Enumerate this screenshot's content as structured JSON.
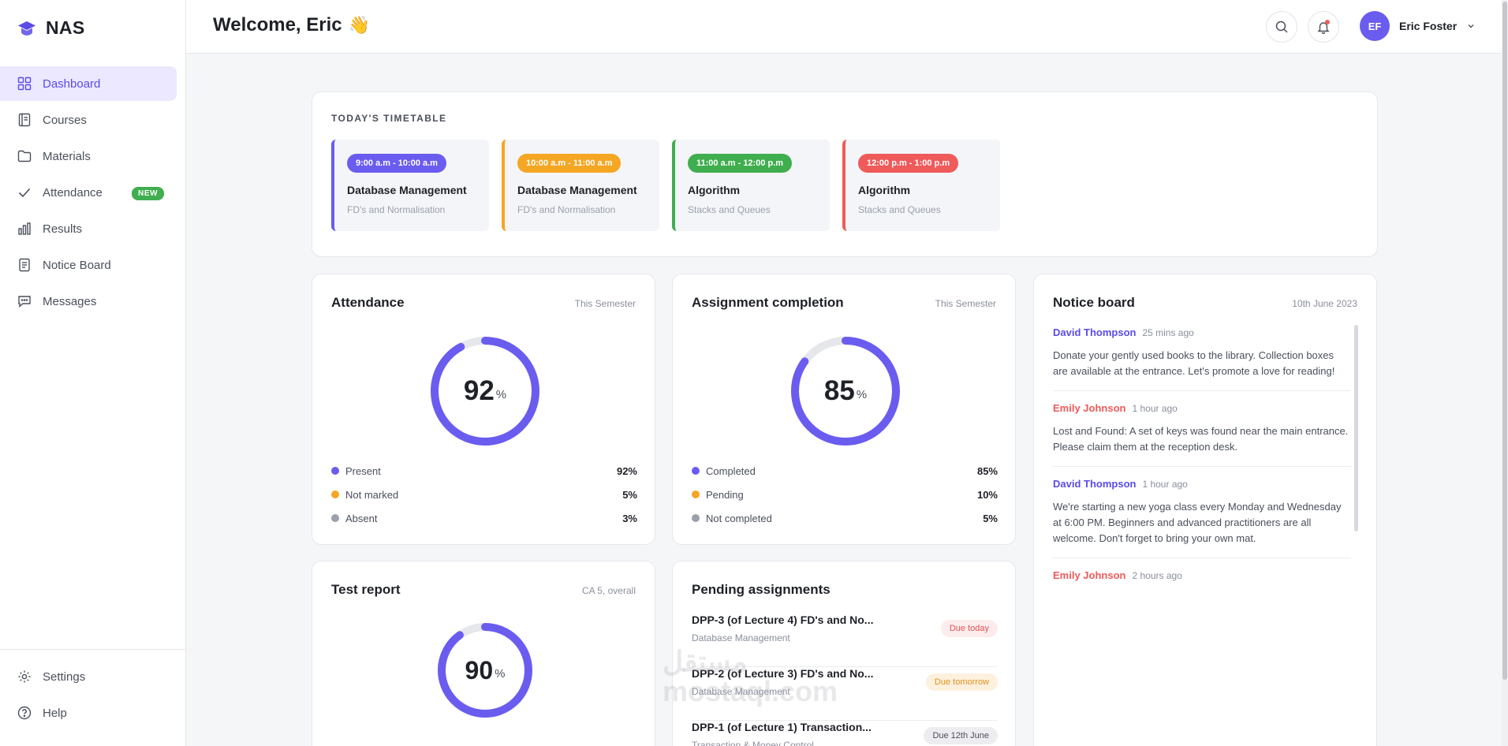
{
  "app": {
    "name": "NAS"
  },
  "sidebar": {
    "items": [
      {
        "label": "Dashboard",
        "icon": "grid-icon",
        "active": true
      },
      {
        "label": "Courses",
        "icon": "book-icon"
      },
      {
        "label": "Materials",
        "icon": "folder-icon"
      },
      {
        "label": "Attendance",
        "icon": "check-icon",
        "badge": "NEW"
      },
      {
        "label": "Results",
        "icon": "bar-chart-icon"
      },
      {
        "label": "Notice Board",
        "icon": "document-icon"
      },
      {
        "label": "Messages",
        "icon": "message-icon"
      }
    ],
    "bottom": [
      {
        "label": "Settings",
        "icon": "gear-icon"
      },
      {
        "label": "Help",
        "icon": "help-icon"
      }
    ]
  },
  "header": {
    "welcome": "Welcome, Eric",
    "emoji": "👋",
    "user": {
      "initials": "EF",
      "name": "Eric Foster"
    }
  },
  "timetable": {
    "label": "TODAY'S TIMETABLE",
    "slots": [
      {
        "time": "9:00 a.m - 10:00 a.m",
        "subject": "Database Management",
        "topic": "FD's and Normalisation",
        "color": "#6b5cf0"
      },
      {
        "time": "10:00 a.m - 11:00 a.m",
        "subject": "Database Management",
        "topic": "FD's and Normalisation",
        "color": "#f5a623"
      },
      {
        "time": "11:00 a.m - 12:00 p.m",
        "subject": "Algorithm",
        "topic": "Stacks and Queues",
        "color": "#3fae4e"
      },
      {
        "time": "12:00 p.m - 1:00 p.m",
        "subject": "Algorithm",
        "topic": "Stacks and Queues",
        "color": "#ef5a5a"
      }
    ]
  },
  "attendance": {
    "title": "Attendance",
    "meta": "This Semester",
    "value": "92",
    "unit": "%",
    "fraction": 0.92,
    "legend": [
      {
        "label": "Present",
        "value": "92%",
        "color": "#6b5cf0"
      },
      {
        "label": "Not marked",
        "value": "5%",
        "color": "#f5a623"
      },
      {
        "label": "Absent",
        "value": "3%",
        "color": "#9aa0ac"
      }
    ]
  },
  "assignment_completion": {
    "title": "Assignment completion",
    "meta": "This Semester",
    "value": "85",
    "unit": "%",
    "fraction": 0.85,
    "legend": [
      {
        "label": "Completed",
        "value": "85%",
        "color": "#6b5cf0"
      },
      {
        "label": "Pending",
        "value": "10%",
        "color": "#f5a623"
      },
      {
        "label": "Not completed",
        "value": "5%",
        "color": "#9aa0ac"
      }
    ]
  },
  "test_report": {
    "title": "Test report",
    "meta": "CA 5, overall",
    "value": "90",
    "unit": "%",
    "fraction": 0.9
  },
  "notice_board": {
    "title": "Notice board",
    "date": "10th June 2023",
    "items": [
      {
        "author": "David Thompson",
        "time": "25 mins ago",
        "body": "Donate your gently used books to the library. Collection boxes are available at the entrance. Let's promote a love for reading!",
        "color": "#5b4be8"
      },
      {
        "author": "Emily Johnson",
        "time": "1 hour ago",
        "body": "Lost and Found: A set of keys was found near the main entrance. Please claim them at the reception desk.",
        "color": "#ef5a5a"
      },
      {
        "author": "David Thompson",
        "time": "1 hour ago",
        "body": "We're starting a new yoga class every Monday and Wednesday at 6:00 PM. Beginners and advanced practitioners are all welcome. Don't forget to bring your own mat.",
        "color": "#5b4be8"
      },
      {
        "author": "Emily Johnson",
        "time": "2 hours ago",
        "body": "",
        "color": "#ef5a5a"
      }
    ]
  },
  "pending_assignments": {
    "title": "Pending assignments",
    "items": [
      {
        "title": "DPP-3 (of Lecture 4) FD's and No...",
        "course": "Database Management",
        "due": "Due today",
        "due_bg": "#fdecec",
        "due_fg": "#e05252"
      },
      {
        "title": "DPP-2 (of Lecture 3) FD's and No...",
        "course": "Database Management",
        "due": "Due tomorrow",
        "due_bg": "#fdf1de",
        "due_fg": "#e0901f"
      },
      {
        "title": "DPP-1 (of Lecture 1) Transaction...",
        "course": "Transaction & Money Control",
        "due": "Due 12th June",
        "due_bg": "#ededf0",
        "due_fg": "#4a4f5c"
      }
    ]
  },
  "watermark": {
    "line1": "مستقل",
    "line2": "mostaql.com"
  }
}
